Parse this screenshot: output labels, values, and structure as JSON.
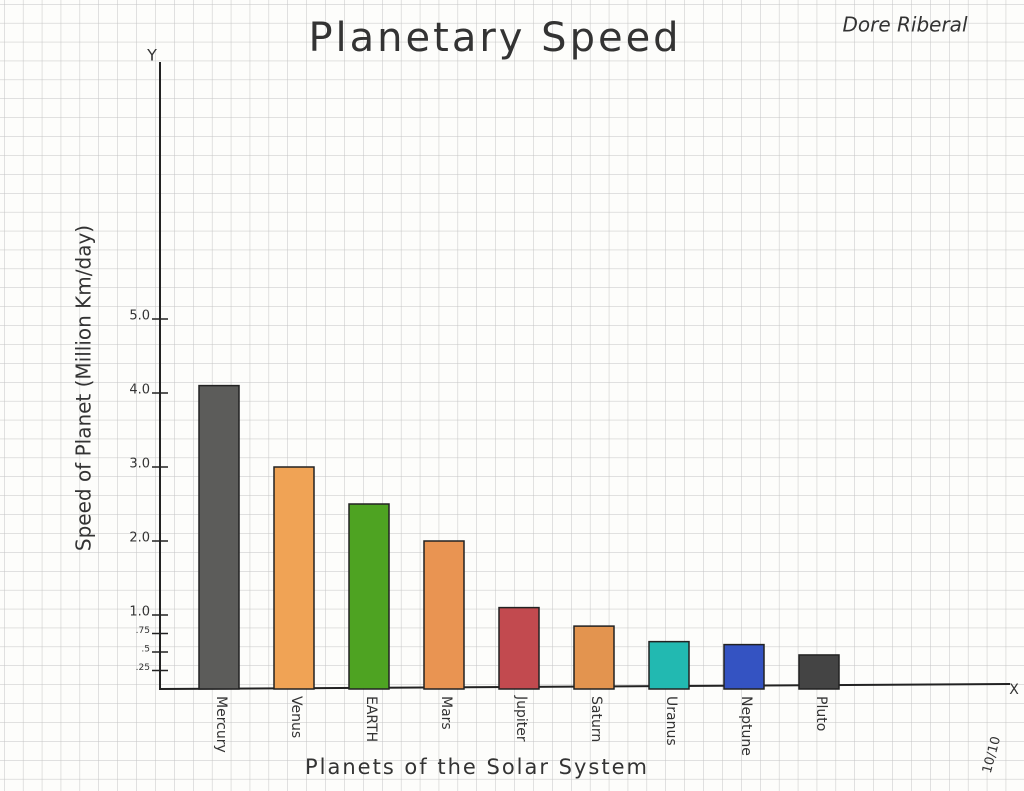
{
  "chart_data": {
    "type": "bar",
    "title": "Planetary Speed",
    "author": "Dore Riberal",
    "y_axis_letter": "Y",
    "x_axis_letter": "X",
    "y_label": "Speed of Planet (Million Km/day)",
    "x_label": "Planets of the Solar System",
    "grade": "10/10",
    "categories": [
      "Mercury",
      "Venus",
      "EARTH",
      "Mars",
      "Jupiter",
      "Saturn",
      "Uranus",
      "Neptune",
      "Pluto"
    ],
    "values": [
      4.1,
      3.0,
      2.5,
      2.0,
      1.1,
      0.85,
      0.64,
      0.6,
      0.46
    ],
    "colors": [
      "#5c5c5a",
      "#f0a355",
      "#4ea322",
      "#e99452",
      "#c24a4f",
      "#e3944f",
      "#22b9b1",
      "#3453c2",
      "#444444"
    ],
    "ylim": [
      0,
      8.5
    ],
    "yticks": [
      {
        "value": 0.25,
        "label": ".25"
      },
      {
        "value": 0.5,
        "label": ".5"
      },
      {
        "value": 0.75,
        "label": ".75"
      },
      {
        "value": 1,
        "label": "1.0"
      },
      {
        "value": 2,
        "label": "2.0"
      },
      {
        "value": 3,
        "label": "3.0"
      },
      {
        "value": 4,
        "label": "4.0"
      },
      {
        "value": 5,
        "label": "5.0"
      }
    ]
  }
}
